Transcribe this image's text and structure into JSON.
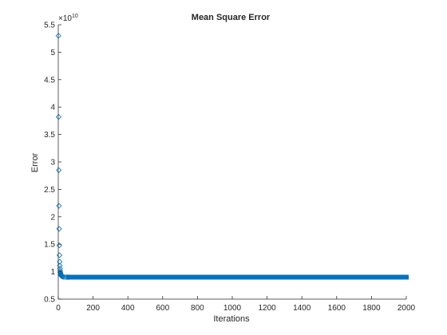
{
  "chart_data": {
    "type": "scatter",
    "title": "Mean Square Error",
    "xlabel": "Iterations",
    "ylabel": "Error",
    "xlim": [
      0,
      2000
    ],
    "ylim": [
      0.5,
      5.5
    ],
    "y_exponent": {
      "base": "×10",
      "power": "10"
    },
    "x_ticks": [
      "0",
      "200",
      "400",
      "600",
      "800",
      "1000",
      "1200",
      "1400",
      "1600",
      "1800",
      "2000"
    ],
    "y_ticks": [
      "0.5",
      "1",
      "1.5",
      "2",
      "2.5",
      "3",
      "3.5",
      "4",
      "4.5",
      "5",
      "5.5"
    ],
    "marker": "diamond",
    "marker_color": "#0072bd",
    "grid": false,
    "series": [
      {
        "x": [
          1,
          2,
          3,
          4,
          5,
          6,
          7,
          8,
          9,
          10,
          11,
          12,
          13,
          14,
          15,
          16,
          17,
          18,
          19,
          20,
          25,
          30,
          40,
          50,
          60
        ],
        "y": [
          5.3,
          3.82,
          2.85,
          2.2,
          1.78,
          1.48,
          1.3,
          1.18,
          1.11,
          1.06,
          1.02,
          0.99,
          0.97,
          0.955,
          0.945,
          0.935,
          0.93,
          0.925,
          0.92,
          0.915,
          0.91,
          0.905,
          0.9,
          0.9,
          0.9
        ],
        "plateau": {
          "x_start": 60,
          "x_end": 2000,
          "y": 0.9
        }
      }
    ]
  }
}
